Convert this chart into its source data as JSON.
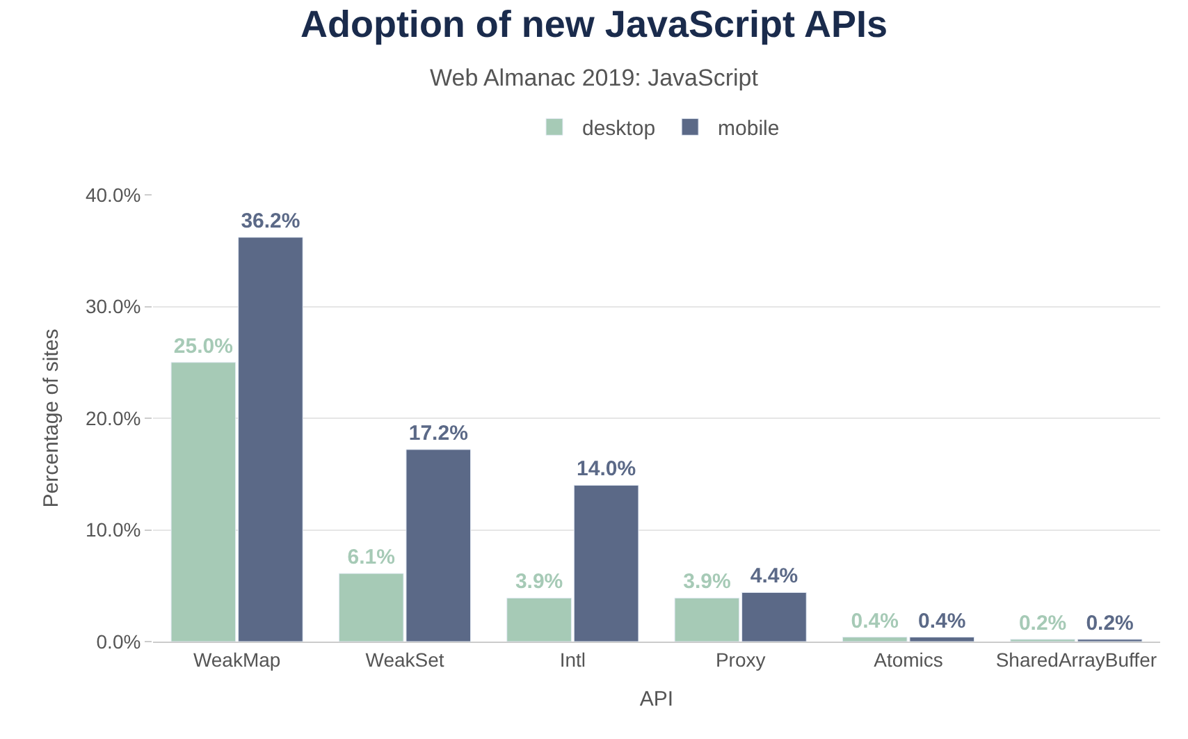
{
  "chart_data": {
    "type": "bar",
    "title": "Adoption of new JavaScript APIs",
    "subtitle": "Web Almanac 2019: JavaScript",
    "xlabel": "API",
    "ylabel": "Percentage of sites",
    "categories": [
      "WeakMap",
      "WeakSet",
      "Intl",
      "Proxy",
      "Atomics",
      "SharedArrayBuffer"
    ],
    "series": [
      {
        "name": "desktop",
        "color": "#a6cab6",
        "values": [
          25.0,
          6.1,
          3.9,
          3.9,
          0.4,
          0.2
        ],
        "value_labels": [
          "25.0%",
          "6.1%",
          "3.9%",
          "3.9%",
          "0.4%",
          "0.2%"
        ]
      },
      {
        "name": "mobile",
        "color": "#5b6987",
        "values": [
          36.2,
          17.2,
          14.0,
          4.4,
          0.4,
          0.2
        ],
        "value_labels": [
          "36.2%",
          "17.2%",
          "14.0%",
          "4.4%",
          "0.4%",
          "0.2%"
        ]
      }
    ],
    "ylim": [
      0,
      40
    ],
    "yticks": [
      {
        "value": 0,
        "label": "0.0%"
      },
      {
        "value": 10,
        "label": "10.0%"
      },
      {
        "value": 20,
        "label": "20.0%"
      },
      {
        "value": 30,
        "label": "30.0%"
      },
      {
        "value": 40,
        "label": "40.0%"
      }
    ],
    "grid": "y",
    "legend": "top"
  }
}
